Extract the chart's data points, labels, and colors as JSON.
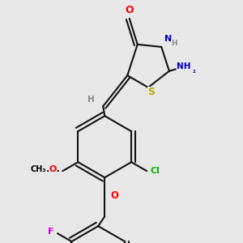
{
  "bg_color": "#e8e8e8",
  "atom_colors": {
    "O": "#ff0000",
    "N": "#0000cc",
    "S": "#bbaa00",
    "Cl": "#00bb00",
    "F": "#dd00dd",
    "C": "#000000",
    "H": "#888888"
  },
  "bond_color": "#111111",
  "bond_width": 1.5
}
